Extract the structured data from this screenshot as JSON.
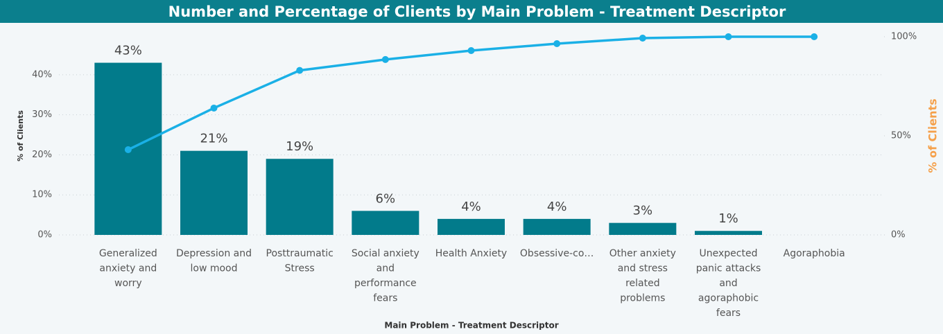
{
  "chart_data": {
    "type": "bar",
    "title": "Number and Percentage of Clients by Main Problem - Treatment Descriptor",
    "x_label": "Main Problem - Treatment Descriptor",
    "y_label": "% of Clients",
    "y2_label": "% of Clients",
    "categories": [
      "Generalized anxiety and worry",
      "Depression and low mood",
      "Posttraumatic Stress",
      "Social anxiety and performance fears",
      "Health Anxiety",
      "Obsessive-co…",
      "Other anxiety and stress related problems",
      "Unexpected panic attacks and agoraphobic fears",
      "Agoraphobia"
    ],
    "series": [
      {
        "type": "bar",
        "color": "#027b8b",
        "values": [
          43,
          21,
          19,
          6,
          4,
          4,
          3,
          1,
          0
        ],
        "value_labels": [
          "43%",
          "21%",
          "19%",
          "6%",
          "4%",
          "4%",
          "3%",
          "1%",
          null
        ]
      },
      {
        "type": "line",
        "color": "#1ab0e6",
        "axis": "y2",
        "values": [
          43,
          64,
          83,
          88.5,
          93,
          96.5,
          99.3,
          100,
          100
        ]
      }
    ],
    "ylim": [
      0,
      49.5
    ],
    "yticks": [
      {
        "value": 0,
        "label": "0%"
      },
      {
        "value": 10,
        "label": "10%"
      },
      {
        "value": 20,
        "label": "20%"
      },
      {
        "value": 30,
        "label": "30%"
      },
      {
        "value": 40,
        "label": "40%"
      }
    ],
    "y2lim": [
      0,
      100
    ],
    "y2ticks": [
      {
        "value": 0,
        "label": "0%"
      },
      {
        "value": 50,
        "label": "50%"
      },
      {
        "value": 100,
        "label": "100%"
      }
    ],
    "grid": true
  }
}
